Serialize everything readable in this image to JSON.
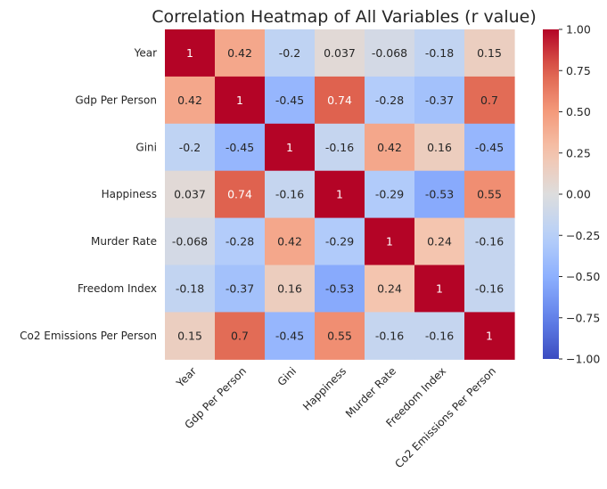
{
  "chart_data": {
    "type": "heatmap",
    "title": "Correlation Heatmap of All Variables (r value)",
    "categories": [
      "Year",
      "Gdp Per Person",
      "Gini",
      "Happiness",
      "Murder Rate",
      "Freedom Index",
      "Co2 Emissions Per Person"
    ],
    "values": [
      [
        1,
        0.42,
        -0.2,
        0.037,
        -0.068,
        -0.18,
        0.15
      ],
      [
        0.42,
        1,
        -0.45,
        0.74,
        -0.28,
        -0.37,
        0.7
      ],
      [
        -0.2,
        -0.45,
        1,
        -0.16,
        0.42,
        0.16,
        -0.45
      ],
      [
        0.037,
        0.74,
        -0.16,
        1,
        -0.29,
        -0.53,
        0.55
      ],
      [
        -0.068,
        -0.28,
        0.42,
        -0.29,
        1,
        0.24,
        -0.16
      ],
      [
        -0.18,
        -0.37,
        0.16,
        -0.53,
        0.24,
        1,
        -0.16
      ],
      [
        0.15,
        0.7,
        -0.45,
        0.55,
        -0.16,
        -0.16,
        1
      ]
    ],
    "labels": [
      [
        "1",
        "0.42",
        "-0.2",
        "0.037",
        "-0.068",
        "-0.18",
        "0.15"
      ],
      [
        "0.42",
        "1",
        "-0.45",
        "0.74",
        "-0.28",
        "-0.37",
        "0.7"
      ],
      [
        "-0.2",
        "-0.45",
        "1",
        "-0.16",
        "0.42",
        "0.16",
        "-0.45"
      ],
      [
        "0.037",
        "0.74",
        "-0.16",
        "1",
        "-0.29",
        "-0.53",
        "0.55"
      ],
      [
        "-0.068",
        "-0.28",
        "0.42",
        "-0.29",
        "1",
        "0.24",
        "-0.16"
      ],
      [
        "-0.18",
        "-0.37",
        "0.16",
        "-0.53",
        "0.24",
        "1",
        "-0.16"
      ],
      [
        "0.15",
        "0.7",
        "-0.45",
        "0.55",
        "-0.16",
        "-0.16",
        "1"
      ]
    ],
    "colormap": "coolwarm",
    "vmin": -1,
    "vmax": 1,
    "colorbar_ticks": [
      "1.00",
      "0.75",
      "0.50",
      "0.25",
      "0.00",
      "−0.25",
      "−0.50",
      "−0.75",
      "−1.00"
    ],
    "colorbar_tick_values": [
      1,
      0.75,
      0.5,
      0.25,
      0,
      -0.25,
      -0.5,
      -0.75,
      -1
    ],
    "colors": {
      "low": "#3b4cc0",
      "mid": "#dddcdc",
      "high": "#b40426"
    }
  }
}
